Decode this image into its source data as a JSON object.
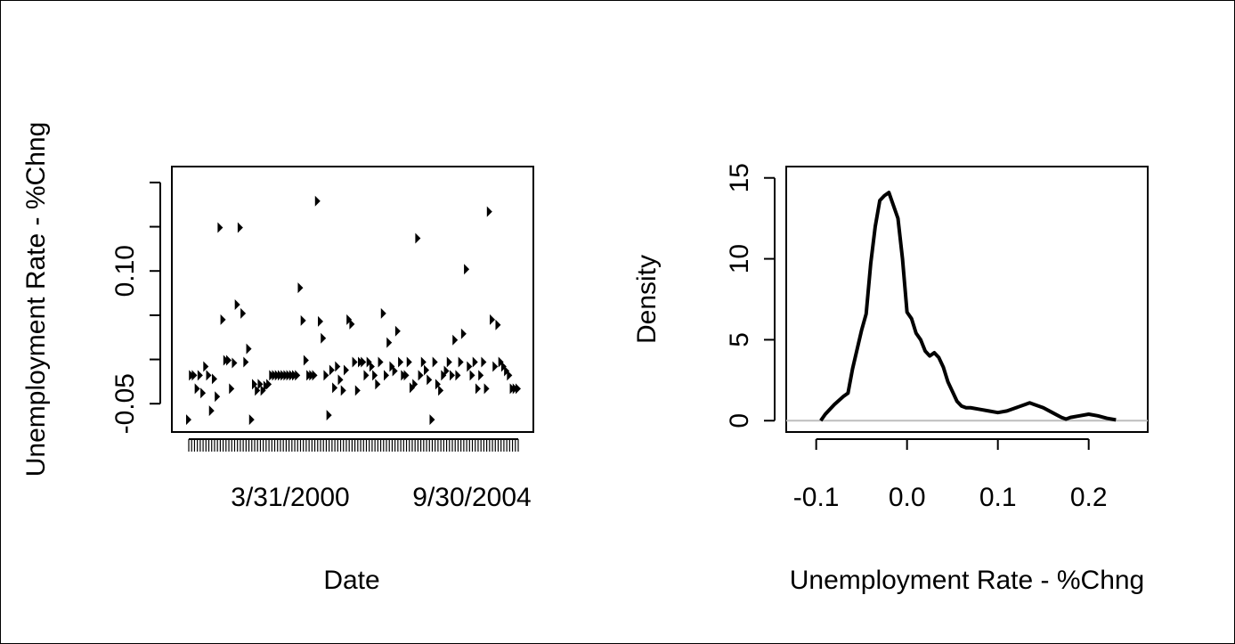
{
  "chart_data": [
    {
      "type": "scatter",
      "title": "",
      "xlabel": "Date",
      "ylabel": "Unemployment Rate - %Chng",
      "x_tick_labels": [
        "3/31/2000",
        "9/30/2004"
      ],
      "y_tick_labels": [
        "-0.05",
        "0.10"
      ],
      "y_ticks": [
        -0.05,
        0,
        0.05,
        0.1,
        0.15,
        0.2
      ],
      "ylim": [
        -0.082,
        0.218
      ],
      "grid": false,
      "series": [
        {
          "values": [
            -0.068,
            -0.018,
            -0.018,
            -0.033,
            -0.018,
            -0.038,
            -0.008,
            -0.018,
            -0.058,
            -0.022,
            -0.042,
            0.149,
            0.045,
            -0.001,
            -0.001,
            -0.033,
            -0.004,
            0.062,
            0.149,
            0.052,
            -0.003,
            0.012,
            -0.068,
            -0.028,
            -0.035,
            -0.028,
            -0.035,
            -0.03,
            -0.028,
            -0.018,
            -0.018,
            -0.018,
            -0.018,
            -0.018,
            -0.018,
            -0.018,
            -0.018,
            -0.018,
            -0.018,
            0.081,
            0.044,
            -0.001,
            -0.018,
            -0.018,
            -0.018,
            0.179,
            0.043,
            0.024,
            -0.018,
            -0.063,
            -0.012,
            -0.032,
            -0.008,
            -0.023,
            -0.035,
            -0.012,
            0.045,
            0.04,
            -0.003,
            -0.035,
            -0.003,
            -0.003,
            -0.018,
            -0.003,
            -0.008,
            -0.018,
            -0.028,
            -0.003,
            0.052,
            -0.018,
            0.019,
            -0.008,
            -0.013,
            0.032,
            -0.003,
            -0.018,
            -0.018,
            -0.003,
            -0.032,
            -0.028,
            0.137,
            -0.018,
            -0.003,
            -0.012,
            -0.023,
            -0.068,
            -0.003,
            -0.028,
            -0.035,
            -0.018,
            -0.013,
            -0.003,
            -0.018,
            0.022,
            -0.018,
            -0.003,
            0.029,
            0.102,
            -0.008,
            -0.018,
            -0.003,
            -0.033,
            -0.018,
            -0.003,
            -0.033,
            0.167,
            0.045,
            -0.008,
            0.039,
            -0.003,
            -0.008,
            -0.013,
            -0.018,
            -0.033,
            -0.033,
            -0.033
          ]
        }
      ]
    },
    {
      "type": "line",
      "title": "",
      "xlabel": "Unemployment Rate - %Chng",
      "ylabel": "Density",
      "x_ticks": [
        -0.1,
        0.0,
        0.1,
        0.2
      ],
      "x_tick_labels": [
        "-0.1",
        "0.0",
        "0.1",
        "0.2"
      ],
      "y_ticks": [
        0,
        5,
        10,
        15
      ],
      "y_tick_labels": [
        "0",
        "5",
        "10",
        "15"
      ],
      "xlim": [
        -0.133,
        0.265
      ],
      "ylim": [
        -0.7,
        15.7
      ],
      "grid": false,
      "baseline": 0,
      "series": [
        {
          "x": [
            -0.095,
            -0.09,
            -0.08,
            -0.07,
            -0.065,
            -0.06,
            -0.05,
            -0.045,
            -0.04,
            -0.035,
            -0.03,
            -0.025,
            -0.02,
            -0.015,
            -0.01,
            -0.005,
            0.0,
            0.005,
            0.01,
            0.015,
            0.02,
            0.025,
            0.03,
            0.035,
            0.04,
            0.045,
            0.05,
            0.055,
            0.06,
            0.065,
            0.07,
            0.08,
            0.09,
            0.1,
            0.11,
            0.12,
            0.13,
            0.135,
            0.14,
            0.15,
            0.16,
            0.17,
            0.175,
            0.18,
            0.19,
            0.2,
            0.21,
            0.22,
            0.23
          ],
          "y": [
            0.0,
            0.4,
            1.0,
            1.5,
            1.7,
            3.2,
            5.6,
            6.6,
            9.7,
            12.0,
            13.6,
            13.9,
            14.1,
            13.3,
            12.5,
            10.0,
            6.7,
            6.3,
            5.4,
            5.0,
            4.3,
            4.0,
            4.2,
            3.9,
            3.3,
            2.4,
            1.8,
            1.2,
            0.9,
            0.8,
            0.8,
            0.7,
            0.6,
            0.5,
            0.6,
            0.8,
            1.0,
            1.1,
            1.0,
            0.8,
            0.5,
            0.2,
            0.1,
            0.2,
            0.3,
            0.4,
            0.3,
            0.15,
            0.05
          ]
        }
      ]
    }
  ]
}
